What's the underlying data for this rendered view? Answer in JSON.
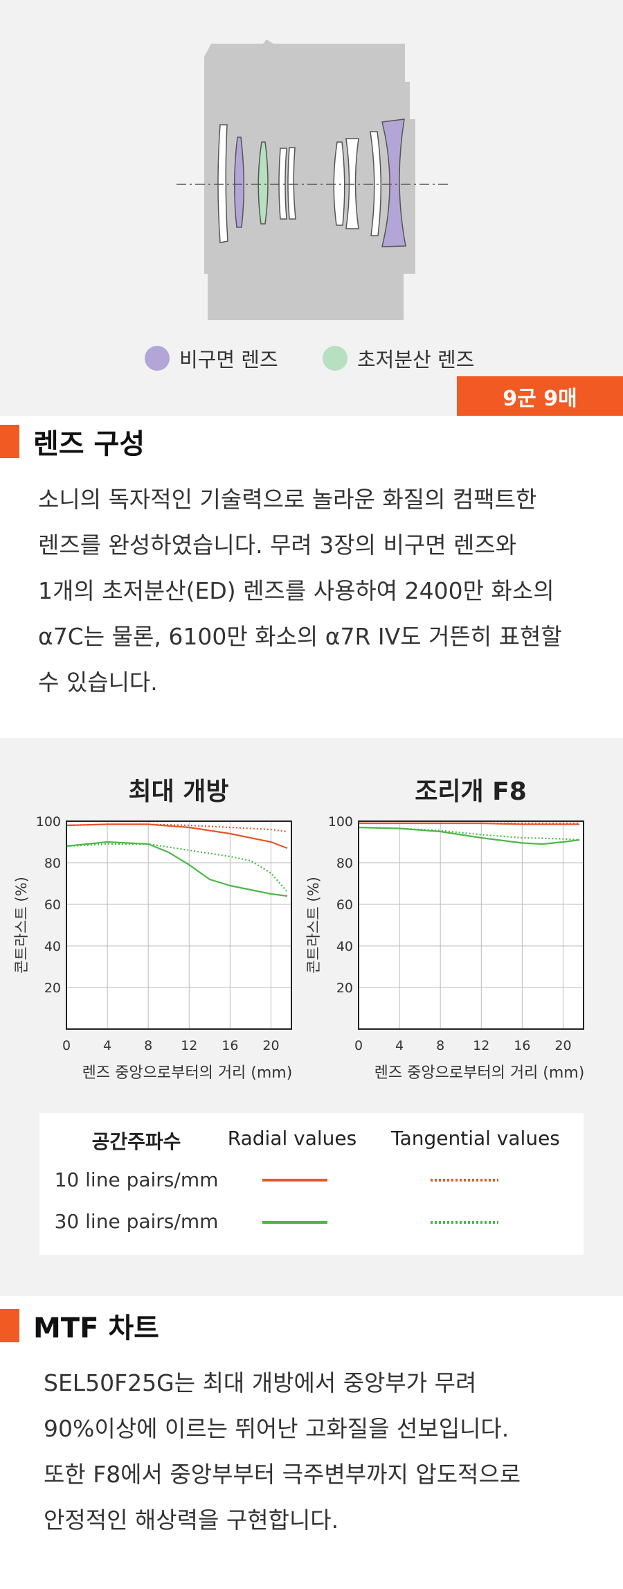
{
  "lens": {
    "legend": [
      {
        "label": "비구면 렌즈",
        "color": "#b3a6d6"
      },
      {
        "label": "초저분산 렌즈",
        "color": "#b6e0c0"
      }
    ],
    "element_count": "9군 9매"
  },
  "lens_section": {
    "title": "렌즈 구성",
    "lines": [
      "소니의 독자적인 기술력으로 놀라운 화질의 컴팩트한",
      "렌즈를 완성하였습니다. 무려 3장의 비구면 렌즈와",
      "1개의 초저분산(ED) 렌즈를 사용하여 2400만 화소의",
      "α7C는 물론, 6100만 화소의 α7R IV도 거뜬히 표현할",
      "수 있습니다."
    ]
  },
  "mtf": {
    "key": {
      "header": [
        "공간주파수",
        "Radial values",
        "Tangential values"
      ],
      "rows": [
        {
          "label": "10 line pairs/mm",
          "color": "#e8552a"
        },
        {
          "label": "30 line pairs/mm",
          "color": "#4cb848"
        }
      ]
    }
  },
  "chart_data": [
    {
      "type": "line",
      "title": "최대 개방",
      "xlabel": "렌즈 중앙으로부터의 거리 (mm)",
      "ylabel": "콘트라스트 (%)",
      "xlim": [
        0,
        22
      ],
      "ylim": [
        0,
        100
      ],
      "xticks": [
        "0",
        "4",
        "8",
        "12",
        "16",
        "20"
      ],
      "yticks": [
        "20",
        "40",
        "60",
        "80",
        "100"
      ],
      "series": [
        {
          "name": "10 line pairs/mm Radial",
          "color": "#e8552a",
          "style": "solid",
          "x": [
            0,
            4,
            8,
            12,
            16,
            20,
            21.6
          ],
          "y": [
            98,
            98.5,
            98.5,
            97,
            94,
            90,
            87
          ]
        },
        {
          "name": "10 line pairs/mm Tangential",
          "color": "#e8552a",
          "style": "dotted",
          "x": [
            0,
            4,
            8,
            12,
            16,
            20,
            21.6
          ],
          "y": [
            98,
            98.5,
            98.5,
            98,
            97,
            96,
            95
          ]
        },
        {
          "name": "30 line pairs/mm Radial",
          "color": "#4cb848",
          "style": "solid",
          "x": [
            0,
            4,
            8,
            10,
            12,
            14,
            16,
            18,
            20,
            21.6
          ],
          "y": [
            88,
            90,
            89,
            85,
            79,
            72,
            69,
            67,
            65,
            64
          ]
        },
        {
          "name": "30 line pairs/mm Tangential",
          "color": "#4cb848",
          "style": "dotted",
          "x": [
            0,
            4,
            8,
            12,
            16,
            18,
            20,
            21.6
          ],
          "y": [
            88,
            89,
            89,
            86,
            83,
            81,
            75,
            66
          ]
        }
      ]
    },
    {
      "type": "line",
      "title": "조리개 F8",
      "xlabel": "렌즈 중앙으로부터의 거리 (mm)",
      "ylabel": "콘트라스트 (%)",
      "xlim": [
        0,
        22
      ],
      "ylim": [
        0,
        100
      ],
      "xticks": [
        "0",
        "4",
        "8",
        "12",
        "16",
        "20"
      ],
      "yticks": [
        "20",
        "40",
        "60",
        "80",
        "100"
      ],
      "series": [
        {
          "name": "10 line pairs/mm Radial",
          "color": "#e8552a",
          "style": "solid",
          "x": [
            0,
            4,
            8,
            12,
            16,
            20,
            21.6
          ],
          "y": [
            99,
            99,
            99,
            99,
            98.5,
            98.5,
            98.5
          ]
        },
        {
          "name": "10 line pairs/mm Tangential",
          "color": "#e8552a",
          "style": "dotted",
          "x": [
            0,
            4,
            8,
            12,
            16,
            20,
            21.6
          ],
          "y": [
            99,
            99,
            99,
            99,
            99,
            99,
            99
          ]
        },
        {
          "name": "30 line pairs/mm Radial",
          "color": "#4cb848",
          "style": "solid",
          "x": [
            0,
            4,
            8,
            12,
            16,
            18,
            20,
            21.6
          ],
          "y": [
            97,
            96.5,
            95,
            92,
            89.5,
            89,
            90,
            91
          ]
        },
        {
          "name": "30 line pairs/mm Tangential",
          "color": "#4cb848",
          "style": "dotted",
          "x": [
            0,
            4,
            8,
            12,
            16,
            20,
            21.6
          ],
          "y": [
            97,
            96.5,
            95.5,
            93.5,
            92,
            91.5,
            91
          ]
        }
      ]
    }
  ],
  "mtf_section": {
    "title": "MTF 차트",
    "lines": [
      "SEL50F25G는 최대 개방에서 중앙부가 무려",
      "90%이상에 이르는 뛰어난 고화질을 선보입니다.",
      "또한 F8에서 중앙부부터 극주변부까지 압도적으로",
      "안정적인 해상력을 구현합니다."
    ]
  }
}
